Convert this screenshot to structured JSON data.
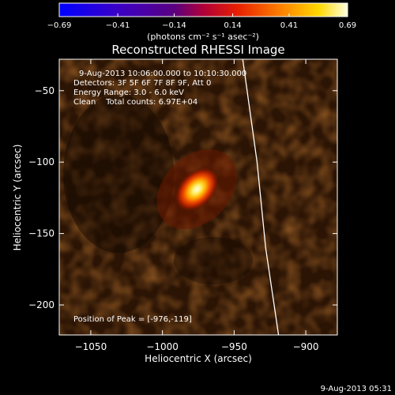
{
  "chart_data": {
    "type": "heatmap",
    "title": "Reconstructed RHESSI Image",
    "xlabel": "Heliocentric X (arcsec)",
    "ylabel": "Heliocentric Y (arcsec)",
    "xlim": [
      -1072,
      -878
    ],
    "ylim": [
      -221,
      -28
    ],
    "x_ticks": [
      -1050,
      -1000,
      -950,
      -900
    ],
    "y_ticks": [
      -200,
      -150,
      -100,
      -50
    ],
    "colorbar": {
      "min": -0.69,
      "max": 0.69,
      "ticks": [
        -0.69,
        -0.41,
        -0.14,
        0.14,
        0.41,
        0.69
      ],
      "tick_labels": [
        "−0.69",
        "−0.41",
        "−0.14",
        "0.14",
        "0.41",
        "0.69"
      ],
      "units_label": "(photons cm⁻² s⁻¹ asec⁻²)"
    },
    "source": {
      "peak_x": -976,
      "peak_y": -119,
      "peak_value": 0.69,
      "orientation_deg": 45
    },
    "limb_curve": [
      [
        -944,
        -28
      ],
      [
        -934,
        -100
      ],
      [
        -928,
        -160
      ],
      [
        -919,
        -221
      ]
    ],
    "info_lines": [
      "9-Aug-2013 10:06:00.000 to 10:10:30.000",
      "Detectors: 3F 5F 6F 7F 8F 9F, Att 0",
      "Energy Range: 3.0 - 6.0 keV",
      "Clean    Total counts: 6.97E+04"
    ],
    "peak_label": "Position of Peak = [-976,-119]"
  },
  "footer": {
    "timestamp": "9-Aug-2013 05:31"
  },
  "colors": {
    "background": "#000000",
    "foreground": "#ffffff"
  }
}
